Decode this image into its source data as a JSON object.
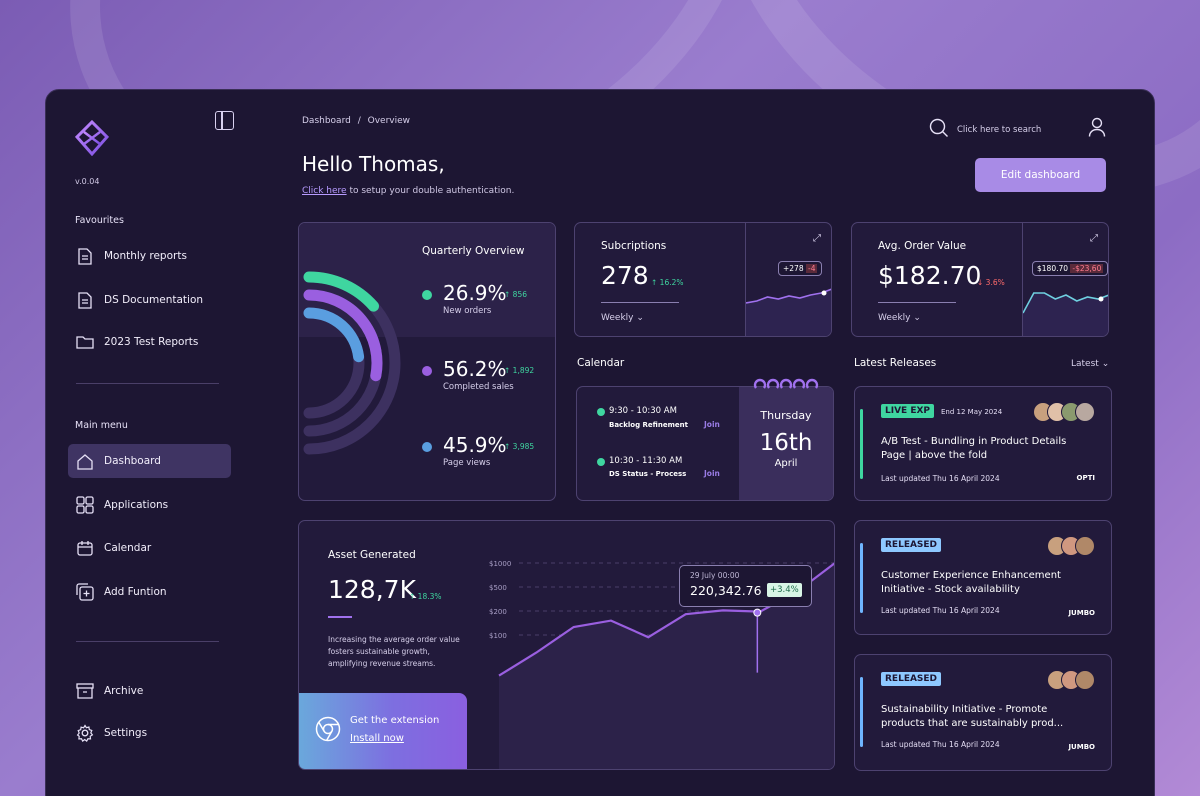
{
  "app": {
    "version": "v.0.04"
  },
  "sidebar": {
    "favourites_title": "Favourites",
    "favourites": [
      {
        "label": "Monthly reports",
        "icon": "document-icon"
      },
      {
        "label": "DS Documentation",
        "icon": "document-icon"
      },
      {
        "label": "2023 Test Reports",
        "icon": "folder-icon"
      }
    ],
    "main_menu_title": "Main menu",
    "menu": [
      {
        "label": "Dashboard",
        "icon": "home-icon",
        "active": true
      },
      {
        "label": "Applications",
        "icon": "grid-icon"
      },
      {
        "label": "Calendar",
        "icon": "calendar-icon"
      },
      {
        "label": "Add Funtion",
        "icon": "add-icon"
      }
    ],
    "bottom": [
      {
        "label": "Archive",
        "icon": "archive-icon"
      },
      {
        "label": "Settings",
        "icon": "gear-icon"
      }
    ]
  },
  "header": {
    "breadcrumb": [
      "Dashboard",
      "Overview"
    ],
    "breadcrumb_sep": "/",
    "search_placeholder": "Click here to search",
    "greeting": "Hello Thomas,",
    "auth_link": "Click here",
    "auth_text": " to setup your double authentication.",
    "edit_button": "Edit dashboard"
  },
  "quarterly": {
    "title": "Quarterly Overview",
    "stats": [
      {
        "value": "26.9%",
        "change": "856",
        "label": "New orders",
        "color": "#3fd6a0",
        "fraction": 0.27
      },
      {
        "value": "56.2%",
        "change": "1,892",
        "label": "Completed sales",
        "color": "#9a5fe0",
        "fraction": 0.56
      },
      {
        "value": "45.9%",
        "change": "3,985",
        "label": "Page views",
        "color": "#5a9ee0",
        "fraction": 0.46
      }
    ]
  },
  "subscriptions": {
    "title": "Subcriptions",
    "value": "278",
    "change": "16.2%",
    "period": "Weekly",
    "tooltip_value": "+278",
    "tooltip_change": "-4",
    "trend": [
      20,
      18,
      14,
      16,
      13,
      15,
      12,
      10,
      6
    ]
  },
  "avg_order": {
    "title": "Avg. Order Value",
    "value": "$182.70",
    "change": "3.6%",
    "period": "Weekly",
    "tooltip_value": "$180.70",
    "tooltip_change": "-$23,60",
    "trend": [
      30,
      10,
      10,
      16,
      12,
      18,
      14,
      16,
      12
    ]
  },
  "calendar": {
    "title": "Calendar",
    "events": [
      {
        "time": "9:30 - 10:30 AM",
        "name": "Backlog Refinement",
        "action": "Join"
      },
      {
        "time": "10:30 - 11:30 AM",
        "name": "DS Status - Process",
        "action": "Join"
      }
    ],
    "weekday": "Thursday",
    "day": "16th",
    "month": "April"
  },
  "asset": {
    "title": "Asset Generated",
    "value": "128,7K",
    "change": "18.3%",
    "description": "Increasing the average order value fosters sustainable growth, amplifying revenue streams.",
    "extension_title": "Get the extension",
    "extension_link": "Install now",
    "tooltip_date": "29 July 00:00",
    "tooltip_value": "220,342.76",
    "tooltip_change": "+3.4%",
    "y_ticks": [
      "$1000",
      "$500",
      "$200",
      "$100"
    ],
    "trend": [
      0.12,
      0.3,
      0.5,
      0.55,
      0.42,
      0.6,
      0.63,
      0.62,
      0.78,
      1.0
    ]
  },
  "releases": {
    "title": "Latest Releases",
    "filter": "Latest",
    "items": [
      {
        "badge": "LIVE EXP",
        "badge_color": "#3fd6a0",
        "date": "End 12 May 2024",
        "title": "A/B Test - Bundling in Product Details Page | above the fold",
        "updated": "Last updated Thu 16 April 2024",
        "company": "OPTI",
        "bar_color": "#3fd6a0"
      },
      {
        "badge": "RELEASED",
        "badge_color": "#6fb5ff",
        "date": "",
        "title": "Customer Experience Enhancement Initiative - Stock availability",
        "updated": "Last updated Thu 16 April 2024",
        "company": "JUMBO",
        "bar_color": "#6fb5ff"
      },
      {
        "badge": "RELEASED",
        "badge_color": "#6fb5ff",
        "date": "",
        "title": "Sustainability Initiative - Promote products that are sustainably prod...",
        "updated": "Last updated Thu 16 April 2024",
        "company": "JUMBO",
        "bar_color": "#6fb5ff"
      }
    ]
  }
}
